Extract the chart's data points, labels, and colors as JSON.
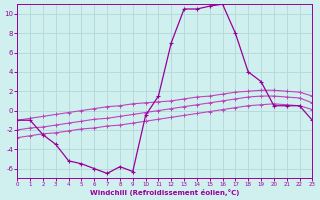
{
  "xlabel": "Windchill (Refroidissement éolien,°C)",
  "xlim": [
    0,
    23
  ],
  "ylim": [
    -7,
    11
  ],
  "yticks": [
    -6,
    -4,
    -2,
    0,
    2,
    4,
    6,
    8,
    10
  ],
  "xticks": [
    0,
    1,
    2,
    3,
    4,
    5,
    6,
    7,
    8,
    9,
    10,
    11,
    12,
    13,
    14,
    15,
    16,
    17,
    18,
    19,
    20,
    21,
    22,
    23
  ],
  "bg_color": "#d0f0f0",
  "grid_color": "#b0d8d8",
  "lc_main": "#990099",
  "lc_sub": "#bb44bb",
  "main_x": [
    0,
    1,
    2,
    3,
    4,
    5,
    6,
    7,
    8,
    9,
    10,
    11,
    12,
    13,
    14,
    15,
    16,
    17,
    18,
    19,
    20,
    21,
    22,
    23
  ],
  "main_y": [
    -1.0,
    -1.0,
    -2.5,
    -3.5,
    -5.2,
    -5.5,
    -6.0,
    -6.5,
    -5.8,
    -6.3,
    -0.5,
    1.5,
    7.0,
    10.5,
    10.5,
    10.8,
    11.0,
    8.0,
    4.0,
    3.0,
    0.5,
    0.5,
    0.5,
    -1.0
  ],
  "line2_x": [
    0,
    1,
    2,
    3,
    4,
    5,
    6,
    7,
    8,
    9,
    10,
    11,
    12,
    13,
    14,
    15,
    16,
    17,
    18,
    19,
    20,
    21,
    22,
    23
  ],
  "line2_y": [
    -1.0,
    -0.8,
    -0.6,
    -0.4,
    -0.2,
    0.0,
    0.2,
    0.4,
    0.5,
    0.7,
    0.8,
    0.9,
    1.0,
    1.2,
    1.4,
    1.5,
    1.7,
    1.9,
    2.0,
    2.1,
    2.1,
    2.0,
    1.9,
    1.5
  ],
  "line3_x": [
    0,
    1,
    2,
    3,
    4,
    5,
    6,
    7,
    8,
    9,
    10,
    11,
    12,
    13,
    14,
    15,
    16,
    17,
    18,
    19,
    20,
    21,
    22,
    23
  ],
  "line3_y": [
    -2.0,
    -1.8,
    -1.7,
    -1.5,
    -1.3,
    -1.1,
    -0.9,
    -0.8,
    -0.6,
    -0.4,
    -0.2,
    0.0,
    0.2,
    0.4,
    0.6,
    0.8,
    1.0,
    1.2,
    1.4,
    1.5,
    1.5,
    1.4,
    1.3,
    0.8
  ],
  "line4_x": [
    0,
    1,
    2,
    3,
    4,
    5,
    6,
    7,
    8,
    9,
    10,
    11,
    12,
    13,
    14,
    15,
    16,
    17,
    18,
    19,
    20,
    21,
    22,
    23
  ],
  "line4_y": [
    -2.8,
    -2.6,
    -2.4,
    -2.3,
    -2.1,
    -1.9,
    -1.8,
    -1.6,
    -1.5,
    -1.3,
    -1.1,
    -0.9,
    -0.7,
    -0.5,
    -0.3,
    -0.1,
    0.1,
    0.3,
    0.5,
    0.6,
    0.7,
    0.6,
    0.5,
    0.1
  ]
}
